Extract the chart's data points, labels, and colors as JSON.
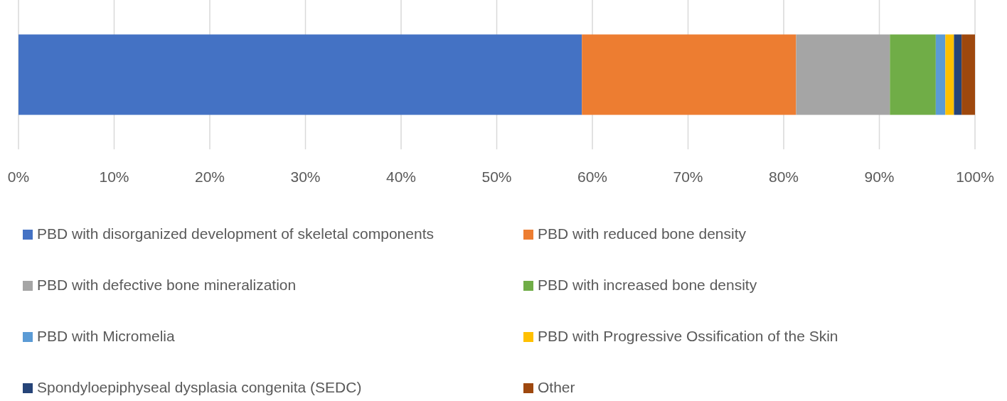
{
  "chart_data": {
    "type": "bar",
    "orientation": "horizontal",
    "stacked": true,
    "categories": [
      null
    ],
    "xlim": [
      0,
      100
    ],
    "xticks": [
      {
        "value": 0,
        "label": "0%"
      },
      {
        "value": 10,
        "label": "10%"
      },
      {
        "value": 20,
        "label": "20%"
      },
      {
        "value": 30,
        "label": "30%"
      },
      {
        "value": 40,
        "label": "40%"
      },
      {
        "value": 50,
        "label": "50%"
      },
      {
        "value": 60,
        "label": "60%"
      },
      {
        "value": 70,
        "label": "70%"
      },
      {
        "value": 80,
        "label": "80%"
      },
      {
        "value": 90,
        "label": "90%"
      },
      {
        "value": 100,
        "label": "100%"
      }
    ],
    "grid": "x",
    "legend": "bottom",
    "series": [
      {
        "name": "PBD with disorganized development of skeletal components",
        "color": "#4472c4",
        "values": [
          58.9
        ]
      },
      {
        "name": "PBD with reduced bone density",
        "color": "#ed7d31",
        "values": [
          22.4
        ]
      },
      {
        "name": "PBD with defective bone mineralization",
        "color": "#a5a5a5",
        "values": [
          9.8
        ]
      },
      {
        "name": "PBD with increased bone density",
        "color": "#70ad47",
        "values": [
          4.8
        ]
      },
      {
        "name": "PBD with Micromelia",
        "color": "#5b9bd5",
        "values": [
          1.0
        ]
      },
      {
        "name": "PBD with Progressive Ossification of the Skin",
        "color": "#ffc000",
        "values": [
          0.9
        ]
      },
      {
        "name": "Spondyloepiphyseal dysplasia congenita (SEDC)",
        "color": "#264478",
        "values": [
          0.8
        ]
      },
      {
        "name": "Other",
        "color": "#9e480e",
        "values": [
          1.4
        ]
      }
    ]
  }
}
